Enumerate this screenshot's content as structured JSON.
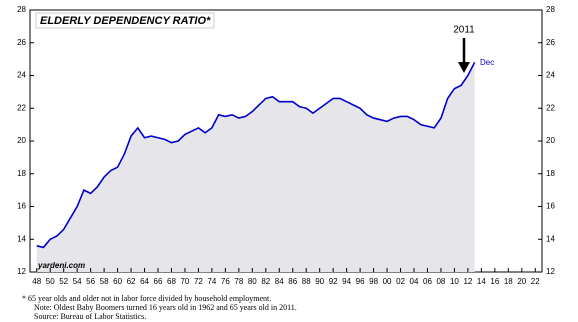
{
  "chart_data": {
    "type": "line",
    "title": "ELDERLY DEPENDENCY RATIO*",
    "annotations": {
      "year_marker": "2011",
      "end_label": "Dec",
      "source_site": "yardeni.com"
    },
    "footnotes": [
      "*  65 year olds and older not in labor force divided by household employment.",
      "Note: Oldest Baby Boomers turned 16 years old  in 1962 and 65 years old in 2011.",
      "Source: Bureau of Labor Statistics."
    ],
    "x": [
      1948,
      1949,
      1950,
      1951,
      1952,
      1953,
      1954,
      1955,
      1956,
      1957,
      1958,
      1959,
      1960,
      1961,
      1962,
      1963,
      1964,
      1965,
      1966,
      1967,
      1968,
      1969,
      1970,
      1971,
      1972,
      1973,
      1974,
      1975,
      1976,
      1977,
      1978,
      1979,
      1980,
      1981,
      1982,
      1983,
      1984,
      1985,
      1986,
      1987,
      1988,
      1989,
      1990,
      1991,
      1992,
      1993,
      1994,
      1995,
      1996,
      1997,
      1998,
      1999,
      2000,
      2001,
      2002,
      2003,
      2004,
      2005,
      2006,
      2007,
      2008,
      2009,
      2010,
      2011,
      2012,
      2013
    ],
    "series": [
      {
        "color": "#0000cc",
        "values": [
          13.6,
          13.5,
          14.0,
          14.2,
          14.6,
          15.3,
          16.0,
          17.0,
          16.8,
          17.2,
          17.8,
          18.2,
          18.4,
          19.2,
          20.3,
          20.8,
          20.2,
          20.3,
          20.2,
          20.1,
          19.9,
          20.0,
          20.4,
          20.6,
          20.8,
          20.5,
          20.8,
          21.6,
          21.5,
          21.6,
          21.4,
          21.5,
          21.8,
          22.2,
          22.6,
          22.7,
          22.4,
          22.4,
          22.4,
          22.1,
          22.0,
          21.7,
          22.0,
          22.3,
          22.6,
          22.6,
          22.4,
          22.2,
          22.0,
          21.6,
          21.4,
          21.3,
          21.2,
          21.4,
          21.5,
          21.5,
          21.3,
          21.0,
          20.9,
          20.8,
          21.4,
          22.6,
          23.2,
          23.4,
          24.0,
          24.8
        ]
      }
    ],
    "area_color": "#e6e6ea",
    "xlim": [
      1947,
      2023
    ],
    "ylim": [
      12,
      28
    ],
    "yticks": [
      12,
      14,
      16,
      18,
      20,
      22,
      24,
      26,
      28
    ],
    "xticks": [
      {
        "value": 1948,
        "label": "48"
      },
      {
        "value": 1950,
        "label": "50"
      },
      {
        "value": 1952,
        "label": "52"
      },
      {
        "value": 1954,
        "label": "54"
      },
      {
        "value": 1956,
        "label": "56"
      },
      {
        "value": 1958,
        "label": "58"
      },
      {
        "value": 1960,
        "label": "60"
      },
      {
        "value": 1962,
        "label": "62"
      },
      {
        "value": 1964,
        "label": "64"
      },
      {
        "value": 1966,
        "label": "66"
      },
      {
        "value": 1968,
        "label": "68"
      },
      {
        "value": 1970,
        "label": "70"
      },
      {
        "value": 1972,
        "label": "72"
      },
      {
        "value": 1974,
        "label": "74"
      },
      {
        "value": 1976,
        "label": "76"
      },
      {
        "value": 1978,
        "label": "78"
      },
      {
        "value": 1980,
        "label": "80"
      },
      {
        "value": 1982,
        "label": "82"
      },
      {
        "value": 1984,
        "label": "84"
      },
      {
        "value": 1986,
        "label": "86"
      },
      {
        "value": 1988,
        "label": "88"
      },
      {
        "value": 1990,
        "label": "90"
      },
      {
        "value": 1992,
        "label": "92"
      },
      {
        "value": 1994,
        "label": "94"
      },
      {
        "value": 1996,
        "label": "96"
      },
      {
        "value": 1998,
        "label": "98"
      },
      {
        "value": 2000,
        "label": "00"
      },
      {
        "value": 2002,
        "label": "02"
      },
      {
        "value": 2004,
        "label": "04"
      },
      {
        "value": 2006,
        "label": "06"
      },
      {
        "value": 2008,
        "label": "08"
      },
      {
        "value": 2010,
        "label": "10"
      },
      {
        "value": 2012,
        "label": "12"
      },
      {
        "value": 2014,
        "label": "14"
      },
      {
        "value": 2016,
        "label": "16"
      },
      {
        "value": 2018,
        "label": "18"
      },
      {
        "value": 2020,
        "label": "20"
      },
      {
        "value": 2022,
        "label": "22"
      }
    ],
    "grid": false
  }
}
